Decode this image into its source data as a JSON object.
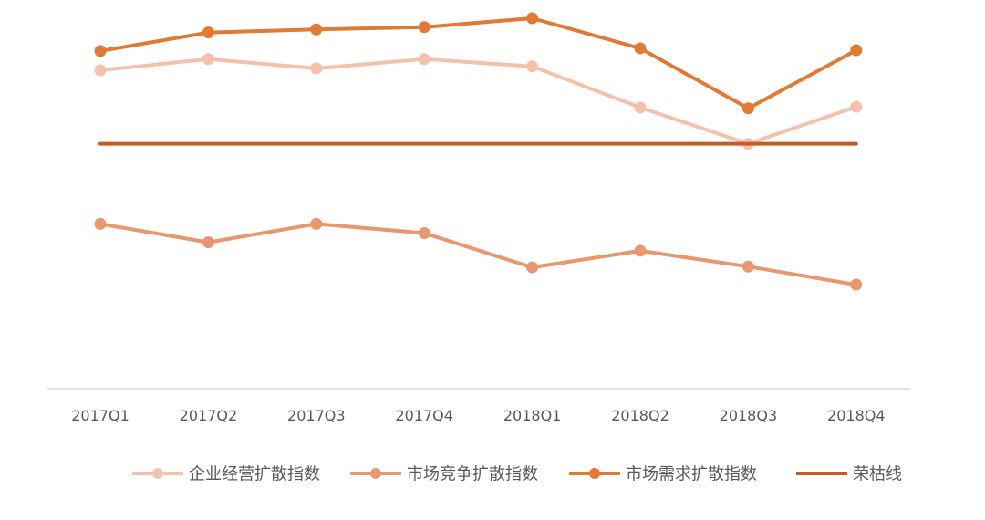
{
  "chart_data": {
    "type": "line",
    "title": "",
    "xlabel": "",
    "ylabel": "",
    "grid": false,
    "legend_position": "bottom",
    "categories": [
      "2017Q1",
      "2017Q2",
      "2017Q3",
      "2017Q4",
      "2018Q1",
      "2018Q2",
      "2018Q3",
      "2018Q4"
    ],
    "ylim": [
      0,
      100
    ],
    "series": [
      {
        "name": "企业经营扩散指数",
        "color": "#f4c2ac",
        "marker": true,
        "values": [
          82.7,
          85.6,
          83.2,
          85.6,
          83.7,
          73.0,
          63.6,
          73.2
        ]
      },
      {
        "name": "市场竞争扩散指数",
        "color": "#e8976f",
        "marker": true,
        "values": [
          42.8,
          38.0,
          42.8,
          40.4,
          31.5,
          35.8,
          31.7,
          27.0
        ]
      },
      {
        "name": "市场需求扩散指数",
        "color": "#e07a35",
        "marker": true,
        "values": [
          87.7,
          92.5,
          93.3,
          93.9,
          96.2,
          88.4,
          72.8,
          87.9
        ]
      },
      {
        "name": "荣枯线",
        "color": "#c45c26",
        "marker": false,
        "values": [
          63.6,
          63.6,
          63.6,
          63.6,
          63.6,
          63.6,
          63.6,
          63.6
        ]
      }
    ]
  }
}
